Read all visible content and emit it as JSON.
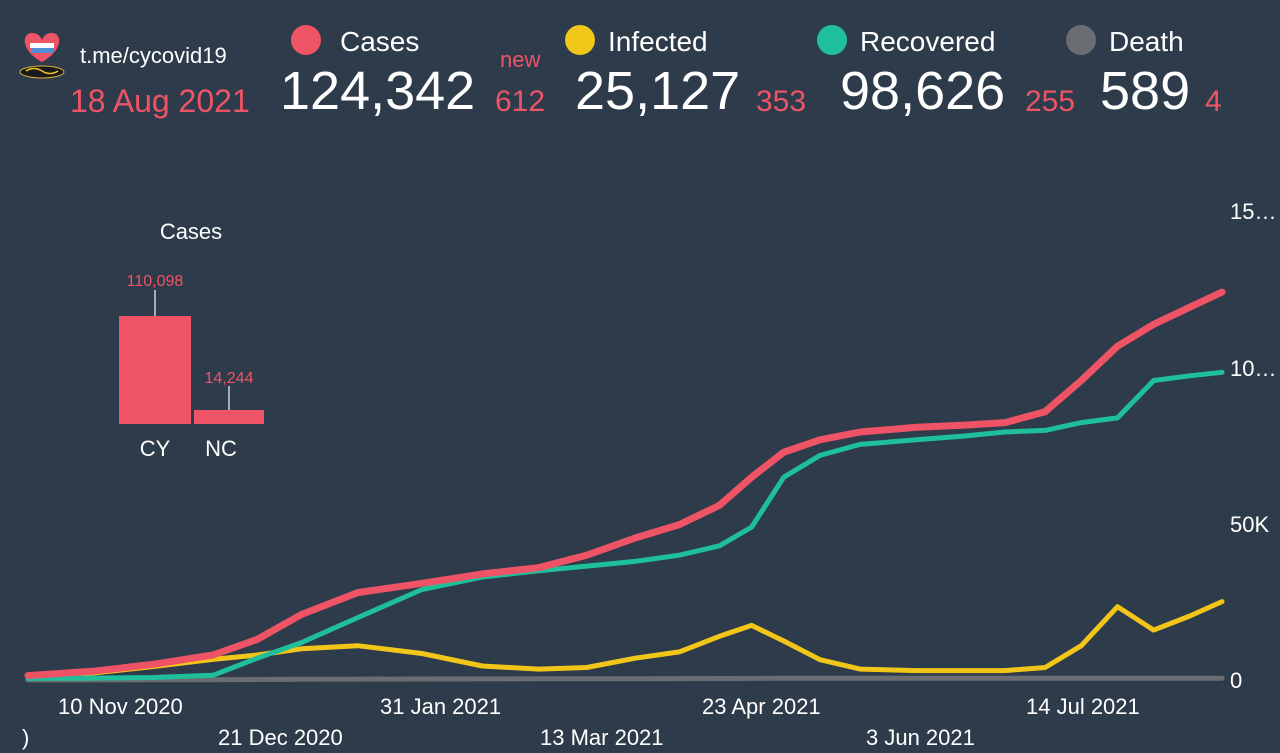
{
  "header": {
    "link": "t.me/cycovid19",
    "date": "18 Aug 2021",
    "new_label": "new"
  },
  "stats": [
    {
      "key": "cases",
      "label": "Cases",
      "value": "124,342",
      "new": "612",
      "color": "#ef5466"
    },
    {
      "key": "infected",
      "label": "Infected",
      "value": "25,127",
      "new": "353",
      "color": "#f2c618"
    },
    {
      "key": "recovered",
      "label": "Recovered",
      "value": "98,626",
      "new": "255",
      "color": "#1fbf9b"
    },
    {
      "key": "death",
      "label": "Death",
      "value": "589",
      "new": "4",
      "color": "#6a6e73"
    }
  ],
  "colors": {
    "background": "#2d3b4a",
    "accent": "#ef5466"
  },
  "icons": {
    "logo": "heart-flag-logo-icon"
  },
  "chart_data": [
    {
      "type": "line",
      "y_ticks": [
        "15…",
        "10…",
        "50K",
        "0"
      ],
      "y_tick_values": [
        150000,
        100000,
        50000,
        0
      ],
      "x_ticks": [
        "10 Nov 2020",
        "21 Dec 2020",
        "31 Jan 2021",
        "13 Mar 2021",
        "23 Apr 2021",
        "3 Jun 2021",
        "14 Jul 2021"
      ],
      "x_ticks_edge": ")",
      "ylim": [
        0,
        150000
      ],
      "x": [
        "2020-10-25",
        "2020-11-10",
        "2020-11-25",
        "2020-12-10",
        "2020-12-21",
        "2021-01-01",
        "2021-01-15",
        "2021-01-31",
        "2021-02-15",
        "2021-03-01",
        "2021-03-13",
        "2021-03-25",
        "2021-04-05",
        "2021-04-15",
        "2021-04-23",
        "2021-05-01",
        "2021-05-10",
        "2021-05-20",
        "2021-06-03",
        "2021-06-15",
        "2021-06-25",
        "2021-07-05",
        "2021-07-14",
        "2021-07-23",
        "2021-08-01",
        "2021-08-10",
        "2021-08-18"
      ],
      "series": [
        {
          "name": "Cases",
          "color": "#ef5466",
          "values": [
            1400,
            2800,
            5000,
            8000,
            13000,
            21000,
            28000,
            31000,
            34000,
            36000,
            40000,
            45500,
            49800,
            56000,
            65000,
            73000,
            77000,
            79500,
            81000,
            81700,
            82500,
            86000,
            96000,
            107000,
            114000,
            119500,
            124342
          ]
        },
        {
          "name": "Recovered",
          "color": "#1fbf9b",
          "values": [
            500,
            600,
            800,
            1500,
            7000,
            12000,
            20000,
            29000,
            33000,
            35000,
            36500,
            38000,
            40000,
            43000,
            49000,
            65000,
            72000,
            75500,
            77000,
            78200,
            79500,
            80000,
            82500,
            84000,
            96000,
            97500,
            98626
          ]
        },
        {
          "name": "Infected",
          "color": "#f2c618",
          "values": [
            900,
            2200,
            4300,
            6600,
            8000,
            10000,
            11000,
            8500,
            4500,
            3500,
            4000,
            7000,
            9000,
            14000,
            17500,
            12500,
            6500,
            3500,
            3000,
            3000,
            3000,
            4000,
            11000,
            23500,
            16000,
            20500,
            25127
          ]
        },
        {
          "name": "Death",
          "color": "#6a6e73",
          "values": [
            20,
            40,
            60,
            100,
            150,
            220,
            280,
            330,
            350,
            370,
            390,
            420,
            450,
            480,
            510,
            540,
            560,
            575,
            580,
            582,
            583,
            584,
            585,
            586,
            587,
            588,
            589
          ]
        }
      ]
    },
    {
      "type": "bar",
      "title": "Cases",
      "categories": [
        "CY",
        "NC"
      ],
      "values": [
        110098,
        14244
      ],
      "value_labels": [
        "110,098",
        "14,244"
      ],
      "color": "#ef5466"
    }
  ]
}
